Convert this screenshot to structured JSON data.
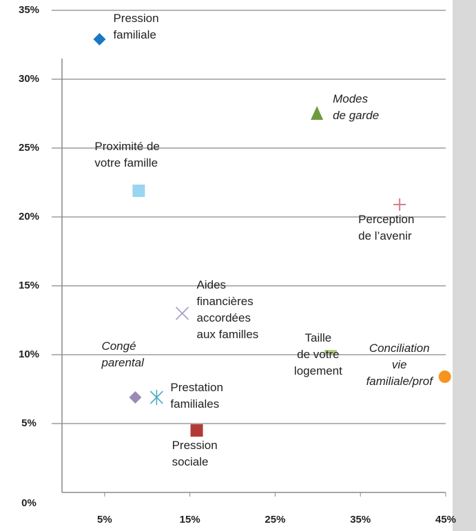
{
  "chart_data": {
    "type": "scatter",
    "xlim": [
      0,
      45
    ],
    "xticks": [
      {
        "value": 5,
        "label": "5%"
      },
      {
        "value": 15,
        "label": "15%"
      },
      {
        "value": 25,
        "label": "25%"
      },
      {
        "value": 35,
        "label": "35%"
      },
      {
        "value": 45,
        "label": "45%"
      }
    ],
    "ylim": [
      0,
      35
    ],
    "yticks": [
      {
        "value": 0,
        "label": "0%"
      },
      {
        "value": 5,
        "label": "5%"
      },
      {
        "value": 10,
        "label": "10%"
      },
      {
        "value": 15,
        "label": "15%"
      },
      {
        "value": 20,
        "label": "20%"
      },
      {
        "value": 25,
        "label": "25%"
      },
      {
        "value": 30,
        "label": "30%"
      },
      {
        "value": 35,
        "label": "35%"
      }
    ],
    "grid": true,
    "series": [
      {
        "name": "Pression\nfamiliale",
        "color": "#1a78c2",
        "marker": "diamond",
        "italic": false,
        "x": [
          4.4
        ],
        "values": [
          32.9
        ]
      },
      {
        "name": "Modes\nde garde",
        "color": "#6e9a3e",
        "marker": "triangle",
        "italic": true,
        "x": [
          29.9
        ],
        "values": [
          27.5
        ]
      },
      {
        "name": "Proximité de\nvotre famille",
        "color": "#99d5f0",
        "marker": "square",
        "italic": false,
        "x": [
          9.0
        ],
        "values": [
          21.9
        ]
      },
      {
        "name": "Perception\nde l’avenir",
        "color": "#d97a8a",
        "marker": "plus",
        "italic": false,
        "x": [
          39.6
        ],
        "values": [
          20.9
        ]
      },
      {
        "name": "Aides\nfinancières\naccordées\naux familles",
        "color": "#a49cc8",
        "marker": "cross",
        "italic": false,
        "x": [
          14.1
        ],
        "values": [
          13.0
        ]
      },
      {
        "name": "Taille\nde votre\nlogement",
        "color": "#b5d08e",
        "marker": "dash",
        "italic": false,
        "x": [
          31.5
        ],
        "values": [
          10.2
        ]
      },
      {
        "name": "Conciliation\nvie\nfamiliale/prof",
        "color": "#f7941d",
        "marker": "circle",
        "italic": true,
        "x": [
          44.9
        ],
        "values": [
          8.4
        ]
      },
      {
        "name": "Congé\nparental",
        "color": "#9b8ab5",
        "marker": "diamond",
        "italic": true,
        "x": [
          8.6
        ],
        "values": [
          6.9
        ]
      },
      {
        "name": "Prestation\nfamiliales",
        "color": "#4bacc6",
        "marker": "star",
        "italic": false,
        "x": [
          11.1
        ],
        "values": [
          6.9
        ]
      },
      {
        "name": "Pression\nsociale",
        "color": "#b23a36",
        "marker": "square",
        "italic": false,
        "x": [
          15.8
        ],
        "values": [
          4.5
        ]
      }
    ]
  }
}
